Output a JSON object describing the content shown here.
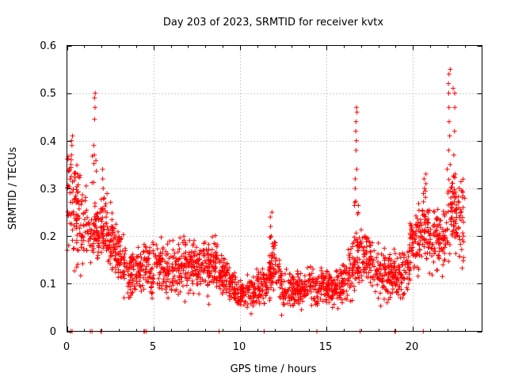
{
  "chart_data": {
    "type": "scatter",
    "title": "Day 203 of 2023, SRMTID for receiver kvtx",
    "xlabel": "GPS time / hours",
    "ylabel": "SRMTID / TECUs",
    "xlim": [
      0,
      24
    ],
    "ylim": [
      0,
      0.6
    ],
    "xticks": [
      "0",
      "5",
      "10",
      "15",
      "20"
    ],
    "yticks": [
      "0",
      "0.1",
      "0.2",
      "0.3",
      "0.4",
      "0.5",
      "0.6"
    ],
    "grid": true,
    "marker": "+",
    "marker_color": "#ff0000",
    "envelope": {
      "description": "approximate center and spread of the point cloud over time (hours, TECU)",
      "x": [
        0.0,
        0.5,
        1.0,
        1.5,
        2.0,
        2.5,
        3.0,
        3.5,
        4.0,
        4.5,
        5.0,
        5.5,
        6.0,
        6.5,
        7.0,
        7.5,
        8.0,
        8.5,
        9.0,
        9.5,
        10.0,
        10.5,
        11.0,
        11.5,
        12.0,
        12.5,
        13.0,
        13.5,
        14.0,
        14.5,
        15.0,
        15.5,
        16.0,
        16.5,
        17.0,
        17.5,
        18.0,
        18.5,
        19.0,
        19.5,
        20.0,
        20.5,
        21.0,
        21.5,
        22.0,
        22.5,
        23.0
      ],
      "center": [
        0.28,
        0.24,
        0.22,
        0.2,
        0.22,
        0.19,
        0.16,
        0.13,
        0.12,
        0.14,
        0.13,
        0.14,
        0.12,
        0.14,
        0.13,
        0.14,
        0.13,
        0.15,
        0.12,
        0.1,
        0.08,
        0.08,
        0.09,
        0.1,
        0.15,
        0.08,
        0.09,
        0.09,
        0.1,
        0.09,
        0.09,
        0.09,
        0.1,
        0.14,
        0.16,
        0.15,
        0.12,
        0.11,
        0.12,
        0.12,
        0.18,
        0.22,
        0.2,
        0.19,
        0.21,
        0.24,
        0.22
      ],
      "spread": [
        0.07,
        0.07,
        0.06,
        0.05,
        0.05,
        0.04,
        0.04,
        0.04,
        0.03,
        0.04,
        0.04,
        0.04,
        0.04,
        0.04,
        0.04,
        0.04,
        0.04,
        0.04,
        0.03,
        0.025,
        0.02,
        0.02,
        0.025,
        0.03,
        0.04,
        0.025,
        0.025,
        0.025,
        0.025,
        0.025,
        0.025,
        0.025,
        0.03,
        0.04,
        0.04,
        0.04,
        0.035,
        0.035,
        0.035,
        0.035,
        0.045,
        0.05,
        0.05,
        0.05,
        0.06,
        0.06,
        0.06
      ]
    },
    "spikes": [
      {
        "x": 0.3,
        "values": [
          0.41,
          0.4,
          0.39,
          0.37,
          0.36,
          0.35
        ]
      },
      {
        "x": 1.6,
        "values": [
          0.5,
          0.49,
          0.47,
          0.445,
          0.39,
          0.37
        ]
      },
      {
        "x": 2.1,
        "values": [
          0.34,
          0.32,
          0.3,
          0.28
        ]
      },
      {
        "x": 16.7,
        "values": [
          0.47,
          0.46,
          0.44,
          0.42,
          0.4,
          0.38,
          0.34,
          0.32,
          0.3
        ]
      },
      {
        "x": 11.8,
        "values": [
          0.25,
          0.24,
          0.22,
          0.2
        ]
      },
      {
        "x": 22.1,
        "values": [
          0.55,
          0.54,
          0.52,
          0.5,
          0.47,
          0.44,
          0.41,
          0.38,
          0.35
        ]
      },
      {
        "x": 22.4,
        "values": [
          0.51,
          0.5,
          0.47,
          0.42,
          0.37,
          0.33
        ]
      },
      {
        "x": 20.7,
        "values": [
          0.33,
          0.32,
          0.31,
          0.3
        ]
      }
    ],
    "zero_points": [
      0.2,
      0.3,
      1.35,
      1.45,
      1.95,
      2.0,
      4.45,
      4.5,
      4.6,
      8.8,
      11.4,
      14.45,
      16.95,
      18.95,
      19.0,
      20.6
    ]
  }
}
